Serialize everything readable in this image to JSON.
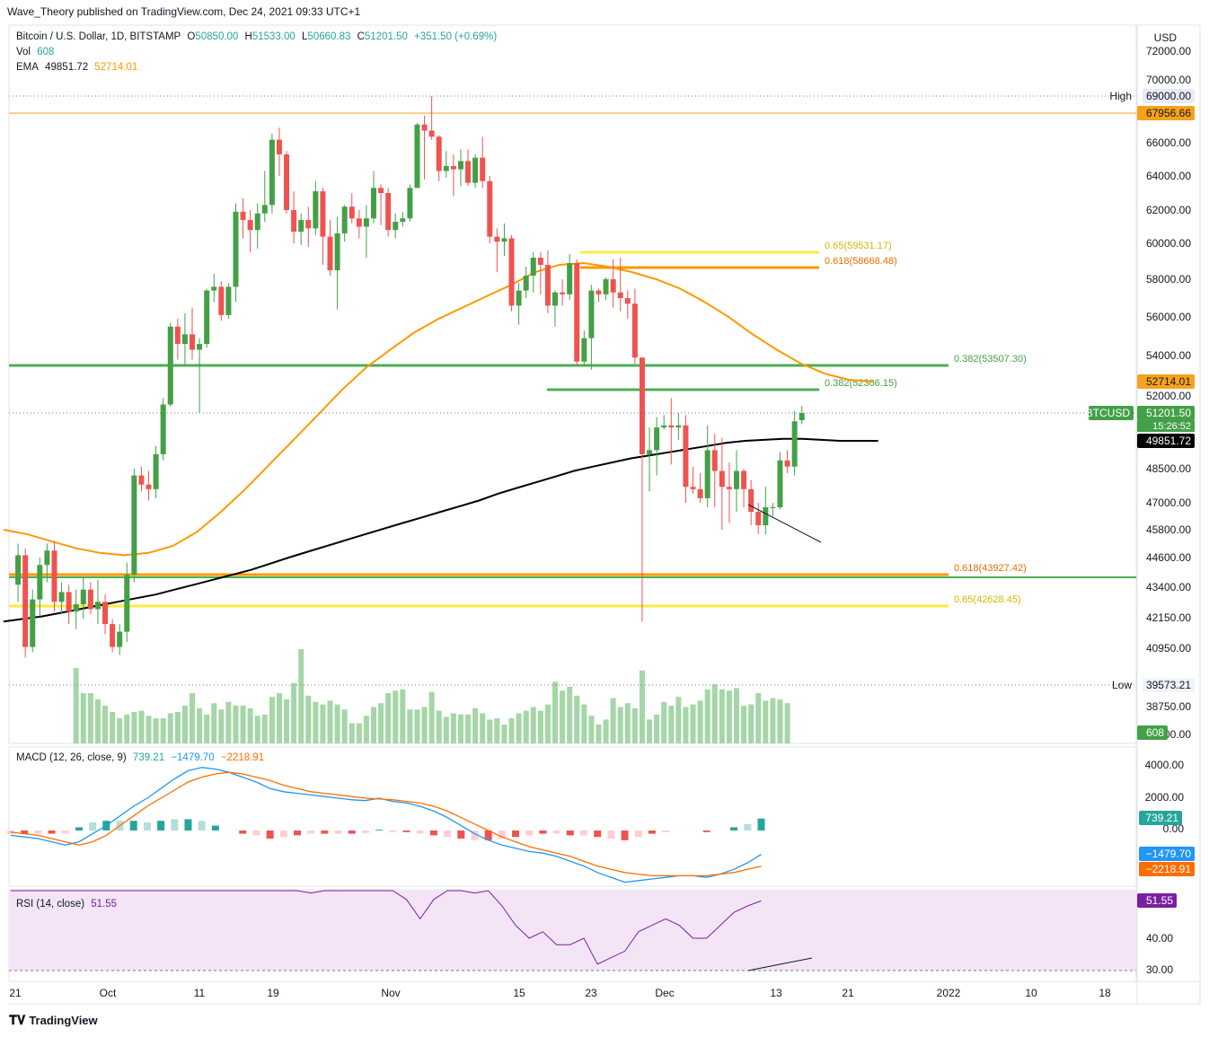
{
  "publisher": "Wave_Theory published on TradingView.com, Dec 24, 2021 09:33 UTC+1",
  "symbol_line": {
    "name": "Bitcoin / U.S. Dollar, 1D, BITSTAMP",
    "open_label": "O",
    "open": "50850.00",
    "high_label": "H",
    "high": "51533.00",
    "low_label": "L",
    "low": "50660.83",
    "close_label": "C",
    "close": "51201.50",
    "change": "+351.50 (+0.69%)"
  },
  "vol_line": {
    "label": "Vol",
    "value": "608"
  },
  "ema_line": {
    "label": "EMA",
    "v1": "49851.72",
    "v2": "52714.01"
  },
  "macd_legend": {
    "label": "MACD (12, 26, close, 9)",
    "v1": "739.21",
    "v2": "−1479.70",
    "v3": "−2218.91"
  },
  "rsi_legend": {
    "label": "RSI (14, close)",
    "v1": "51.55"
  },
  "currency": "USD",
  "brand": "TradingView",
  "colors": {
    "up": "#26a69a",
    "down": "#ef5350",
    "up_vol": "#a5d6a7",
    "down_vol": "#a5d6a7",
    "green_line": "#4caf50",
    "orange_line": "#ff9800",
    "yellow_line": "#ffeb3b",
    "ema200": "#000000",
    "ema50": "#ff9800",
    "macd": "#2196f3",
    "signal": "#ff6d00",
    "rsi": "#7b1fa2",
    "rsi_band": "#f3e5f5"
  },
  "chart_data": {
    "type": "candlestick",
    "price_axis_ticks": [
      "72000.00",
      "70000.00",
      "69000.00",
      "67956.66",
      "66000.00",
      "64000.00",
      "62000.00",
      "60000.00",
      "58000.00",
      "56000.00",
      "54000.00",
      "52714.01",
      "52000.00",
      "51201.50",
      "49851.72",
      "48500.00",
      "47000.00",
      "45800.00",
      "44600.00",
      "43400.00",
      "42150.00",
      "40950.00",
      "39573.21",
      "38750.00",
      "00.00"
    ],
    "time_axis_ticks": [
      "21",
      "Oct",
      "11",
      "19",
      "Nov",
      "15",
      "23",
      "Dec",
      "13",
      "21",
      "2022",
      "10",
      "18"
    ],
    "ohlc": [
      [
        43500,
        45200,
        42800,
        44700
      ],
      [
        44700,
        45000,
        40600,
        41000
      ],
      [
        41000,
        43300,
        40800,
        42900
      ],
      [
        42900,
        44600,
        42200,
        44300
      ],
      [
        44300,
        45200,
        43600,
        44900
      ],
      [
        44900,
        45300,
        42400,
        42800
      ],
      [
        42800,
        43600,
        42300,
        43200
      ],
      [
        43200,
        43500,
        41900,
        42400
      ],
      [
        42400,
        43300,
        41700,
        42700
      ],
      [
        42700,
        43800,
        42100,
        43300
      ],
      [
        43300,
        43600,
        42300,
        42500
      ],
      [
        42500,
        43700,
        41900,
        42800
      ],
      [
        42800,
        43100,
        41500,
        41900
      ],
      [
        41900,
        42100,
        40800,
        41000
      ],
      [
        41000,
        41900,
        40700,
        41600
      ],
      [
        41600,
        44400,
        41200,
        43900
      ],
      [
        43900,
        48500,
        43600,
        48200
      ],
      [
        48200,
        48600,
        47500,
        47800
      ],
      [
        47800,
        48400,
        47100,
        47600
      ],
      [
        47600,
        49600,
        47200,
        49200
      ],
      [
        49200,
        51900,
        48900,
        51600
      ],
      [
        51600,
        55700,
        51500,
        55500
      ],
      [
        55500,
        55900,
        53800,
        54600
      ],
      [
        54600,
        56200,
        53500,
        55100
      ],
      [
        55100,
        56500,
        53800,
        54300
      ],
      [
        54300,
        54900,
        51200,
        54600
      ],
      [
        54600,
        57500,
        54400,
        57400
      ],
      [
        57400,
        58300,
        56800,
        57600
      ],
      [
        57600,
        57900,
        55800,
        56100
      ],
      [
        56100,
        57800,
        55900,
        57600
      ],
      [
        57600,
        62400,
        56800,
        61900
      ],
      [
        61900,
        62700,
        60300,
        61400
      ],
      [
        61400,
        62000,
        59500,
        60800
      ],
      [
        60800,
        62400,
        59700,
        61800
      ],
      [
        61800,
        64300,
        61300,
        62300
      ],
      [
        62300,
        66600,
        61800,
        66200
      ],
      [
        66200,
        67000,
        64000,
        65300
      ],
      [
        65300,
        65500,
        61800,
        62000
      ],
      [
        62000,
        63100,
        60000,
        60700
      ],
      [
        60700,
        61800,
        59900,
        61400
      ],
      [
        61400,
        62200,
        59800,
        60900
      ],
      [
        60900,
        63700,
        60500,
        63100
      ],
      [
        63100,
        63300,
        58800,
        60400
      ],
      [
        60400,
        61400,
        58200,
        58500
      ],
      [
        58500,
        61600,
        56400,
        60600
      ],
      [
        60600,
        62300,
        60100,
        62200
      ],
      [
        62200,
        63000,
        61200,
        61500
      ],
      [
        61500,
        62000,
        60300,
        61000
      ],
      [
        61000,
        62300,
        59200,
        61500
      ],
      [
        61500,
        64300,
        61200,
        63300
      ],
      [
        63300,
        63500,
        61100,
        63000
      ],
      [
        63000,
        63300,
        60400,
        60800
      ],
      [
        60800,
        61800,
        60300,
        61300
      ],
      [
        61300,
        61900,
        61000,
        61500
      ],
      [
        61500,
        63500,
        61300,
        63300
      ],
      [
        63300,
        67300,
        63300,
        67200
      ],
      [
        67200,
        67800,
        63800,
        66800
      ],
      [
        66800,
        69000,
        66200,
        66400
      ],
      [
        66400,
        66500,
        63700,
        64300
      ],
      [
        64300,
        65500,
        63900,
        64600
      ],
      [
        64600,
        65300,
        62800,
        64400
      ],
      [
        64400,
        65600,
        63400,
        64900
      ],
      [
        64900,
        65600,
        63400,
        63600
      ],
      [
        63600,
        65300,
        63300,
        65100
      ],
      [
        65100,
        66400,
        63300,
        63700
      ],
      [
        63700,
        64000,
        60000,
        60400
      ],
      [
        60400,
        60900,
        58400,
        60100
      ],
      [
        60100,
        61200,
        59300,
        60300
      ],
      [
        60300,
        60500,
        56300,
        56600
      ],
      [
        56600,
        57800,
        55600,
        57400
      ],
      [
        57400,
        58700,
        57000,
        58200
      ],
      [
        58200,
        59500,
        57300,
        59200
      ],
      [
        59200,
        59500,
        57200,
        58800
      ],
      [
        58800,
        59600,
        56200,
        56600
      ],
      [
        56600,
        57400,
        55500,
        57300
      ],
      [
        57300,
        58000,
        56600,
        57200
      ],
      [
        57200,
        59400,
        56900,
        58900
      ],
      [
        58900,
        59100,
        53500,
        53700
      ],
      [
        53700,
        55300,
        53500,
        54900
      ],
      [
        54900,
        57700,
        53300,
        57400
      ],
      [
        57400,
        57500,
        56800,
        57200
      ],
      [
        57200,
        58100,
        56900,
        58000
      ],
      [
        58000,
        59100,
        56500,
        57300
      ],
      [
        57300,
        59200,
        56300,
        57000
      ],
      [
        57000,
        57400,
        55900,
        56700
      ],
      [
        56700,
        57500,
        53600,
        53900
      ],
      [
        53900,
        53900,
        42000,
        49200
      ],
      [
        49200,
        50500,
        47500,
        49400
      ],
      [
        49400,
        51000,
        48200,
        50500
      ],
      [
        50500,
        51100,
        50400,
        50600
      ],
      [
        50600,
        51900,
        48700,
        50500
      ],
      [
        50500,
        51200,
        49900,
        50600
      ],
      [
        50600,
        51100,
        47000,
        47700
      ],
      [
        47700,
        48600,
        47400,
        47600
      ],
      [
        47600,
        48300,
        47000,
        47200
      ],
      [
        47200,
        50600,
        46800,
        49400
      ],
      [
        49400,
        50200,
        46800,
        48400
      ],
      [
        48400,
        50000,
        45800,
        47700
      ],
      [
        47700,
        48800,
        46100,
        47600
      ],
      [
        47600,
        49400,
        46600,
        48400
      ],
      [
        48400,
        48500,
        46800,
        47600
      ],
      [
        47600,
        48000,
        46000,
        46600
      ],
      [
        46600,
        47000,
        45600,
        46000
      ],
      [
        46000,
        47700,
        45600,
        46800
      ],
      [
        46800,
        47000,
        46400,
        46800
      ],
      [
        46800,
        49300,
        46700,
        48900
      ],
      [
        48900,
        49400,
        48300,
        48600
      ],
      [
        48600,
        51300,
        48200,
        50800
      ],
      [
        50850,
        51533,
        50660.83,
        51201.5
      ]
    ],
    "volume": [
      6,
      4,
      4,
      3.5,
      3,
      2.5,
      2,
      2.3,
      2.5,
      2.6,
      2.2,
      2,
      2,
      2.4,
      2.5,
      3,
      4,
      2.8,
      2.3,
      3.2,
      2.7,
      3.3,
      3,
      3,
      2.8,
      2.2,
      2.3,
      3.7,
      4,
      3.5,
      4.8,
      7.5,
      3.8,
      3.3,
      3.1,
      3.4,
      3.1,
      2.7,
      1.6,
      1.6,
      2.2,
      2.9,
      3.2,
      4,
      4.2,
      4.3,
      2.7,
      2.7,
      2.9,
      4.1,
      2.6,
      2.1,
      2.4,
      2.3,
      2.3,
      2.8,
      2.4,
      1.9,
      2,
      1.5,
      2,
      2.4,
      2.6,
      2.9,
      2.6,
      3.1,
      4.9,
      4.2,
      4.5,
      3.8,
      3.1,
      2.2,
      1.5,
      1.9,
      3.6,
      2.9,
      3.2,
      2.8,
      5.8,
      1.9,
      2.3,
      3.3,
      3,
      3.7,
      2.9,
      3.1,
      3.4,
      4.3,
      4.7,
      4.3,
      4.2,
      4.4,
      3,
      3.1,
      4,
      3.4,
      3.6,
      3.5,
      3.2
    ],
    "ema200": [
      42000,
      42100,
      42200,
      42350,
      42500,
      42650,
      42800,
      42950,
      43100,
      43300,
      43500,
      43700,
      43900,
      44100,
      44350,
      44600,
      44850,
      45100,
      45350,
      45600,
      45850,
      46100,
      46350,
      46600,
      46850,
      47100,
      47400,
      47650,
      47900,
      48150,
      48400,
      48600,
      48800,
      49000,
      49150,
      49300,
      49450,
      49600,
      49750,
      49850,
      49900,
      49950,
      49950,
      49900,
      49850,
      49850,
      49852
    ],
    "ema50": [
      45800,
      45600,
      45300,
      45000,
      44800,
      44700,
      44800,
      45100,
      45700,
      46600,
      47600,
      48700,
      49900,
      51100,
      52300,
      53400,
      54300,
      55200,
      55900,
      56500,
      57100,
      57700,
      58400,
      58800,
      58900,
      58700,
      58400,
      58000,
      57500,
      56800,
      56000,
      55100,
      54300,
      53600,
      53100,
      52800,
      52714
    ],
    "levels": [
      {
        "label": "High",
        "price": "69000.00"
      },
      {
        "label": "Low",
        "price": "39573.21"
      }
    ],
    "fib_labels": [
      "0.65(59531.17)",
      "0.618(58668.48)",
      "0.382(53507.30)",
      "0.382(52306.15)",
      "0.618(43927.42)",
      "0.65(42628.45)"
    ],
    "macd_axis_ticks": [
      "4000.00",
      "2000.00",
      "0.00"
    ],
    "macd_badges": [
      "739.21",
      "−1479.70",
      "−2218.91"
    ],
    "rsi_axis_ticks": [
      "40.00",
      "30.00"
    ],
    "rsi_badge": "51.55",
    "rsi_values": [
      64,
      66,
      60,
      58,
      63,
      60,
      56,
      55,
      58,
      74,
      82,
      83,
      80,
      72,
      70,
      66,
      62,
      58,
      56,
      64,
      68,
      60,
      54,
      56,
      59,
      56,
      60,
      58,
      55,
      52,
      46,
      52,
      56,
      58,
      54,
      56,
      50,
      44,
      40,
      42,
      38,
      38,
      40,
      32,
      34,
      36,
      42,
      44,
      46,
      44,
      40,
      40,
      44,
      48,
      50,
      51.55
    ],
    "macd_values": [
      -300,
      -400,
      -500,
      -700,
      -900,
      -700,
      -200,
      300,
      900,
      1500,
      2000,
      2600,
      3200,
      3700,
      3900,
      3800,
      3600,
      3300,
      3000,
      2600,
      2400,
      2300,
      2200,
      2100,
      2000,
      1900,
      1850,
      2000,
      1800,
      1700,
      1500,
      1200,
      800,
      300,
      -200,
      -600,
      -900,
      -1100,
      -1300,
      -1400,
      -1600,
      -1900,
      -2200,
      -2600,
      -2900,
      -3200,
      -3100,
      -3000,
      -2900,
      -2800,
      -2800,
      -2900,
      -2700,
      -2400,
      -2000,
      -1480
    ],
    "signal_values": [
      -100,
      -200,
      -300,
      -500,
      -700,
      -900,
      -700,
      -300,
      300,
      900,
      1500,
      2000,
      2500,
      3000,
      3300,
      3500,
      3600,
      3500,
      3300,
      3100,
      2800,
      2600,
      2400,
      2300,
      2200,
      2100,
      2000,
      1950,
      1900,
      1800,
      1700,
      1500,
      1200,
      800,
      400,
      0,
      -400,
      -700,
      -1000,
      -1200,
      -1400,
      -1600,
      -1900,
      -2200,
      -2400,
      -2600,
      -2700,
      -2800,
      -2800,
      -2800,
      -2800,
      -2800,
      -2700,
      -2600,
      -2400,
      -2219
    ],
    "macd_hist": [
      -200,
      -200,
      -200,
      -200,
      -200,
      200,
      500,
      600,
      600,
      600,
      500,
      600,
      700,
      700,
      600,
      300,
      0,
      -200,
      -300,
      -500,
      -400,
      -300,
      -200,
      -200,
      -200,
      -200,
      -150,
      50,
      -100,
      -100,
      -200,
      -300,
      -400,
      -500,
      -600,
      -600,
      -500,
      -400,
      -300,
      -200,
      -200,
      -300,
      -300,
      -400,
      -500,
      -600,
      -400,
      -200,
      -100,
      0,
      0,
      -100,
      0,
      200,
      400,
      739
    ]
  }
}
